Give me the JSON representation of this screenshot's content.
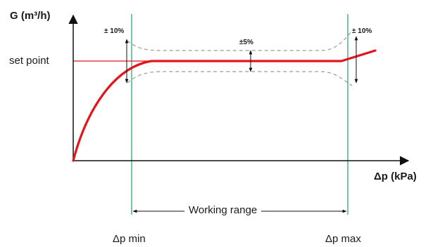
{
  "labels": {
    "y_axis": "G (m³/h)",
    "x_axis": "Δp (kPa)",
    "set_point": "set point",
    "tol_left": "± 10%",
    "tol_mid": "±5%",
    "tol_right": "± 10%",
    "working_range": "Working range",
    "dp_min": "Δp min",
    "dp_max": "Δp max"
  },
  "colors": {
    "curve": "#e3151a",
    "limit_lines": "#1fa463",
    "axes": "#111111",
    "tolerance_band": "#9a9a9a"
  }
}
